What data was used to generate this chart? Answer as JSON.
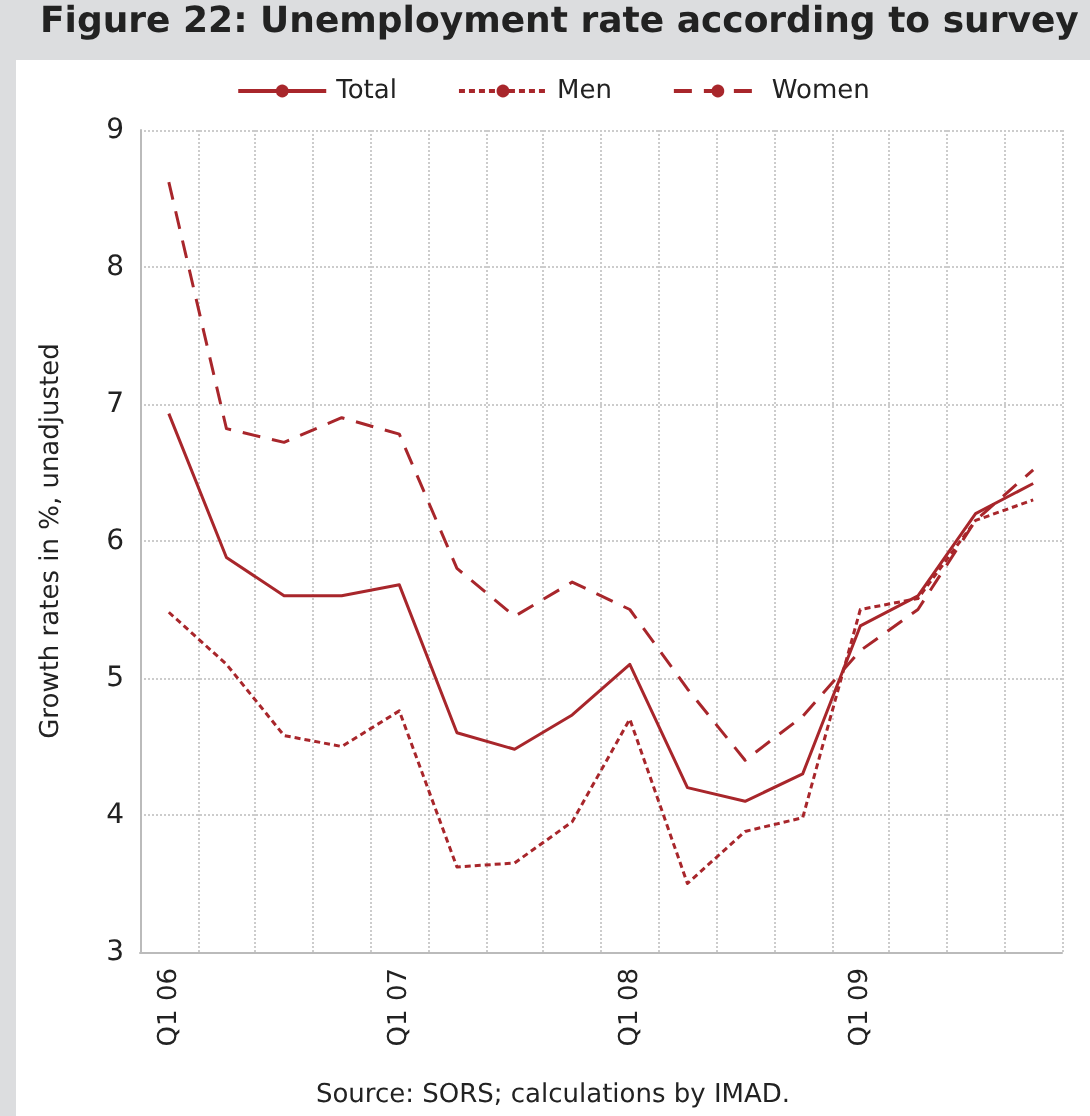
{
  "chart_data": {
    "type": "line",
    "title": "Figure 22: Unemployment rate according to survey",
    "ylabel": "Growth rates in %, unadjusted",
    "annotations": [
      "Source: SORS; calculations by IMAD."
    ],
    "categories": [
      "Q1 06",
      null,
      null,
      null,
      "Q1 07",
      null,
      null,
      null,
      "Q1 08",
      null,
      null,
      null,
      "Q1 09",
      null,
      null,
      null
    ],
    "series": [
      {
        "name": "Total",
        "color": "#a8262b",
        "line_style": "solid",
        "values": [
          6.93,
          5.88,
          5.6,
          5.6,
          5.68,
          4.6,
          4.48,
          4.73,
          5.1,
          4.2,
          4.1,
          4.3,
          5.38,
          5.6,
          6.2,
          6.42
        ]
      },
      {
        "name": "Men",
        "color": "#a8262b",
        "line_style": "dotted",
        "values": [
          5.48,
          5.1,
          4.58,
          4.5,
          4.76,
          3.62,
          3.65,
          3.95,
          4.7,
          3.5,
          3.88,
          3.98,
          5.5,
          5.58,
          6.15,
          6.3
        ]
      },
      {
        "name": "Women",
        "color": "#a8262b",
        "line_style": "dashed",
        "values": [
          8.62,
          6.82,
          6.72,
          6.9,
          6.78,
          5.8,
          5.45,
          5.7,
          5.5,
          4.92,
          4.4,
          4.72,
          5.2,
          5.5,
          6.15,
          6.52
        ]
      }
    ],
    "ylim": [
      3,
      9
    ],
    "yticks": [
      3,
      4,
      5,
      6,
      7,
      8,
      9
    ],
    "grid": true,
    "legend": "top",
    "marker": "none"
  }
}
